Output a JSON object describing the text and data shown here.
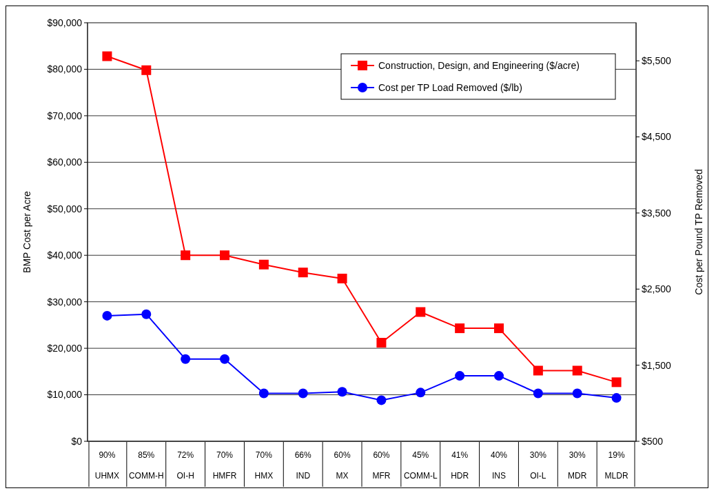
{
  "chart_data": {
    "type": "line",
    "ylabel": "BMP Cost per Acre",
    "y2label": "Cost per Pound TP Removed",
    "categories": [
      "90%\nUHMX",
      "85%\nCOMM-H",
      "72%\nOI-H",
      "70%\nHMFR",
      "70%\nHMX",
      "66%\nIND",
      "60%\nMX",
      "60%\nMFR",
      "45%\nCOMM-L",
      "41%\nHDR",
      "40%\nINS",
      "30%\nOI-L",
      "30%\nMDR",
      "19%\nMLDR"
    ],
    "series": [
      {
        "name": "Construction, Design, and Engineering ($/acre)",
        "color": "#ff0000",
        "marker": "square",
        "values": [
          82800,
          79800,
          40000,
          40000,
          38000,
          36300,
          35000,
          21200,
          27800,
          24300,
          24300,
          15200,
          15200,
          12700
        ]
      },
      {
        "name": "Cost per TP Load Removed ($/lb)",
        "color": "#0000ff",
        "marker": "circle",
        "axis": "y2",
        "values": [
          2150,
          2170,
          1580,
          1580,
          1130,
          1130,
          1150,
          1040,
          1140,
          1360,
          1360,
          1130,
          1130,
          1070
        ]
      }
    ],
    "ylim": [
      0,
      90000
    ],
    "yticks": [
      {
        "value": 0,
        "label": "$0"
      },
      {
        "value": 10000,
        "label": "$10,000"
      },
      {
        "value": 20000,
        "label": "$20,000"
      },
      {
        "value": 30000,
        "label": "$30,000"
      },
      {
        "value": 40000,
        "label": "$40,000"
      },
      {
        "value": 50000,
        "label": "$50,000"
      },
      {
        "value": 60000,
        "label": "$60,000"
      },
      {
        "value": 70000,
        "label": "$70,000"
      },
      {
        "value": 80000,
        "label": "$80,000"
      },
      {
        "value": 90000,
        "label": "$90,000"
      }
    ],
    "y2lim": [
      500,
      6000
    ],
    "y2ticks": [
      {
        "value": 500,
        "label": "$500"
      },
      {
        "value": 1500,
        "label": "$1,500"
      },
      {
        "value": 2500,
        "label": "$2,500"
      },
      {
        "value": 3500,
        "label": "$3,500"
      },
      {
        "value": 4500,
        "label": "$4,500"
      },
      {
        "value": 5500,
        "label": "$5,500"
      }
    ],
    "grid": "y",
    "legend": "top right"
  }
}
